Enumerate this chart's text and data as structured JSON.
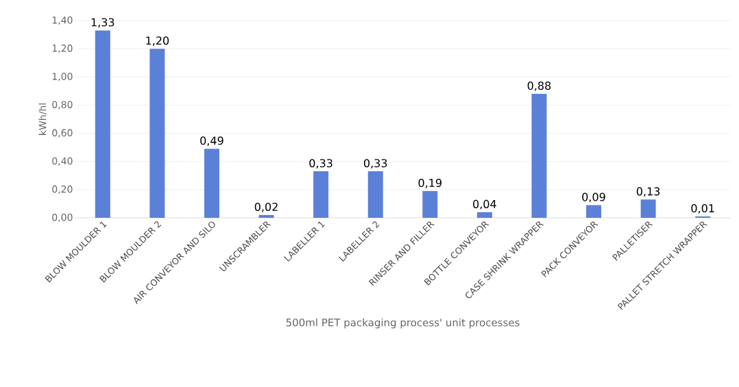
{
  "chart_data": {
    "type": "bar",
    "categories": [
      "BLOW MOULDER 1",
      "BLOW MOULDER 2",
      "AIR CONVEYOR AND SILO",
      "UNSCRAMBLER",
      "LABELLER 1",
      "LABELLER 2",
      "RINSER AND FILLER",
      "BOTTLE CONVEYOR",
      "CASE SHRINK WRAPPER",
      "PACK CONVEYOR",
      "PALLETISER",
      "PALLET STRETCH WRAPPER"
    ],
    "values": [
      1.33,
      1.2,
      0.49,
      0.02,
      0.33,
      0.33,
      0.19,
      0.04,
      0.88,
      0.09,
      0.13,
      0.01
    ],
    "value_labels": [
      "1,33",
      "1,20",
      "0,49",
      "0,02",
      "0,33",
      "0,33",
      "0,19",
      "0,04",
      "0,88",
      "0,09",
      "0,13",
      "0,01"
    ],
    "color": "#5b80d8",
    "xlabel": "500ml PET packaging process' unit processes",
    "ylabel": "kWh/hl",
    "ylim": [
      0,
      1.4
    ],
    "yticks": [
      {
        "value": 0,
        "label": "0,00"
      },
      {
        "value": 0.2,
        "label": "0,20"
      },
      {
        "value": 0.4,
        "label": "0,40"
      },
      {
        "value": 0.6,
        "label": "0,60"
      },
      {
        "value": 0.8,
        "label": "0,80"
      },
      {
        "value": 1.0,
        "label": "1,00"
      },
      {
        "value": 1.2,
        "label": "1,20"
      },
      {
        "value": 1.4,
        "label": "1,40"
      }
    ],
    "grid": "y"
  }
}
